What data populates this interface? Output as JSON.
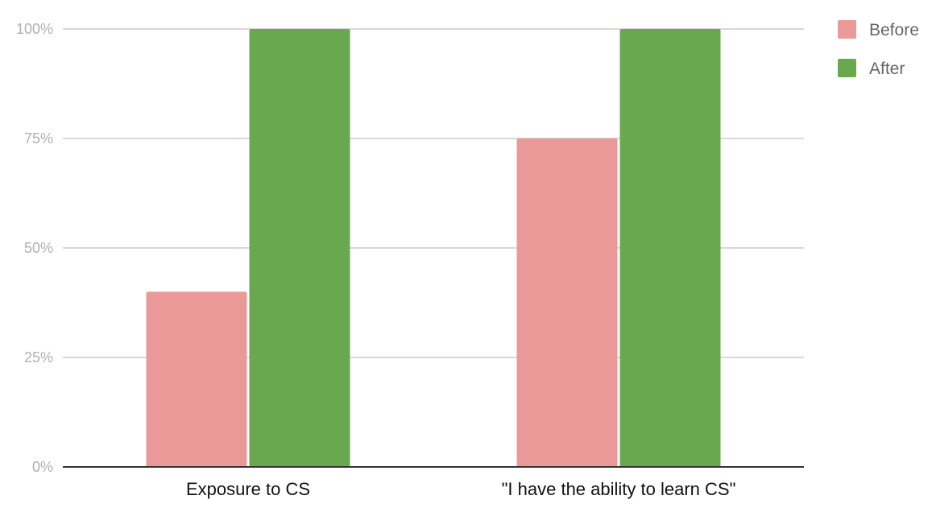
{
  "chart_data": {
    "type": "bar",
    "title": "",
    "xlabel": "",
    "ylabel": "",
    "categories": [
      "Exposure to CS",
      "\"I have the ability to learn CS\""
    ],
    "series": [
      {
        "name": "Before",
        "color": "#ea9999",
        "values": [
          40,
          75
        ]
      },
      {
        "name": "After",
        "color": "#6aa84f",
        "values": [
          100,
          100
        ]
      }
    ],
    "ylim": [
      0,
      100
    ],
    "yticks": [
      0,
      25,
      50,
      75,
      100
    ],
    "ytick_labels": [
      "0%",
      "25%",
      "50%",
      "75%",
      "100%"
    ],
    "grid": true,
    "legend_position": "top-right"
  }
}
